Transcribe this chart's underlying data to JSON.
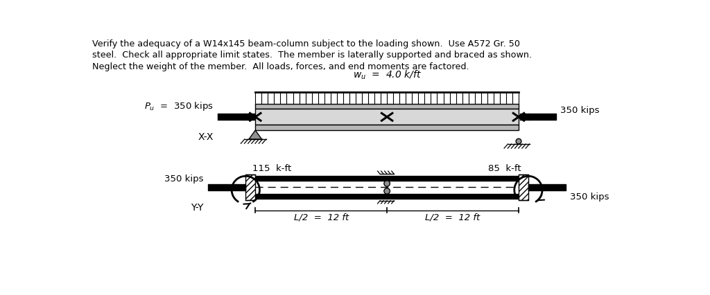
{
  "title_lines": [
    "Verify the adequacy of a W14x145 beam-column subject to the loading shown.  Use A572 Gr. 50",
    "steel.  Check all appropriate limit states.  The member is laterally supported and braced as shown.",
    "Neglect the weight of the member.  All loads, forces, and end moments are factored."
  ],
  "wu_text": "$w_u$  =  4.0 k/ft",
  "Pu_text": "$P_u$  =  350 kips",
  "xx_label": "X-X",
  "yy_label": "Y-Y",
  "moment_left": "115  k-ft",
  "moment_right": "85  k-ft",
  "kips_350": "350 kips",
  "L_half_left": "L/2  =  12 ft",
  "L_half_right": "L/2  =  12 ft",
  "background": "#ffffff",
  "fig_width": 10.24,
  "fig_height": 4.27,
  "dpi": 100,
  "bx_l": 3.1,
  "bx_r": 8.0,
  "xx_yt": 2.98,
  "xx_yb": 2.48,
  "yy_yt": 1.62,
  "yy_yb": 1.2
}
